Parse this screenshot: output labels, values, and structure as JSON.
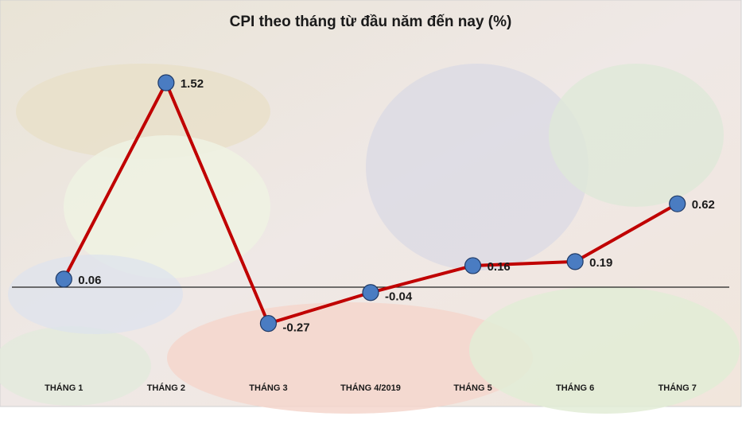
{
  "chart_data": {
    "type": "line",
    "title": "CPI theo tháng từ đầu năm đến nay (%)",
    "categories": [
      "THÁNG 1",
      "THÁNG 2",
      "THÁNG 3",
      "THÁNG 4/2019",
      "THÁNG 5",
      "THÁNG 6",
      "THÁNG 7"
    ],
    "values": [
      0.06,
      1.52,
      -0.27,
      -0.04,
      0.16,
      0.19,
      0.62
    ],
    "color": "#c00000",
    "marker_color": "#4a7cc2"
  }
}
